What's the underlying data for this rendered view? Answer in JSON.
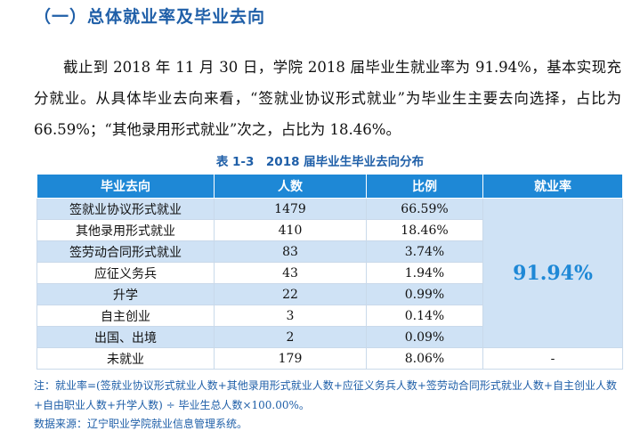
{
  "heading": "（一）总体就业率及毕业去向",
  "paragraph": "截止到 2018 年 11 月 30 日，学院 2018 届毕业生就业率为 91.94%，基本实现充分就业。从具体毕业去向来看，“签就业协议形式就业”为毕业生主要去向选择，占比为 66.59%；“其他录用形式就业”次之，占比为 18.46%。",
  "table": {
    "caption": "表 1-3　2018 届毕业生毕业去向分布",
    "headers": [
      "毕业去向",
      "人数",
      "比例",
      "就业率"
    ],
    "rows": [
      {
        "destination": "签就业协议形式就业",
        "count": "1479",
        "ratio": "66.59%"
      },
      {
        "destination": "其他录用形式就业",
        "count": "410",
        "ratio": "18.46%"
      },
      {
        "destination": "签劳动合同形式就业",
        "count": "83",
        "ratio": "3.74%"
      },
      {
        "destination": "应征义务兵",
        "count": "43",
        "ratio": "1.94%"
      },
      {
        "destination": "升学",
        "count": "22",
        "ratio": "0.99%"
      },
      {
        "destination": "自主创业",
        "count": "3",
        "ratio": "0.14%"
      },
      {
        "destination": "出国、出境",
        "count": "2",
        "ratio": "0.09%"
      },
      {
        "destination": "未就业",
        "count": "179",
        "ratio": "8.06%"
      }
    ],
    "employment_rate": "91.94%",
    "unemployed_rate": "-"
  },
  "note": "注：就业率=(签就业协议形式就业人数+其他录用形式就业人数+应征义务兵人数+签劳动合同形式就业人数+自主创业人数+自由职业人数+升学人数) ÷ 毕业生总人数×100.00%。",
  "source": "数据来源：辽宁职业学院就业信息管理系统。",
  "colors": {
    "accent": "#1f5fa8",
    "header_bg": "#1e88d6",
    "row_shade": "#cfe2f5"
  }
}
